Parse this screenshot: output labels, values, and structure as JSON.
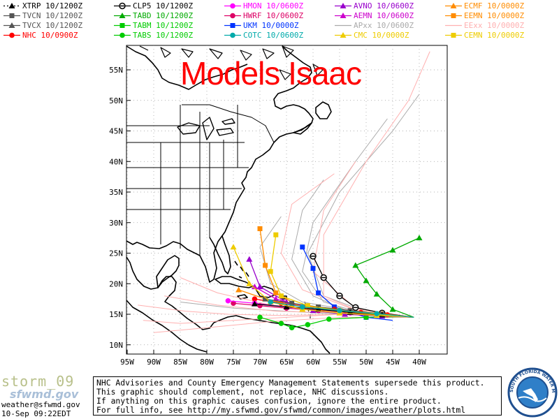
{
  "title": "Models Isaac",
  "legend": [
    {
      "label": "XTRP 10/1200Z",
      "color": "#000000",
      "marker": "triangle",
      "dashed": true
    },
    {
      "label": "CLP5 10/1200Z",
      "color": "#000000",
      "marker": "circle-bar"
    },
    {
      "label": "HMON 10/0600Z",
      "color": "#ff00ff",
      "marker": "circle"
    },
    {
      "label": "AVNO 10/0600Z",
      "color": "#9900cc",
      "marker": "triangle"
    },
    {
      "label": "ECMF 10/0000Z",
      "color": "#ff8c00",
      "marker": "triangle"
    },
    {
      "label": "TVCN 10/1200Z",
      "color": "#555555",
      "marker": "square"
    },
    {
      "label": "TABD 10/1200Z",
      "color": "#00aa00",
      "marker": "triangle"
    },
    {
      "label": "HWRF 10/0600Z",
      "color": "#dd0066",
      "marker": "circle"
    },
    {
      "label": "AEMN 10/0600Z",
      "color": "#cc00cc",
      "marker": "triangle"
    },
    {
      "label": "EEMN 10/0000Z",
      "color": "#ff8c00",
      "marker": "square"
    },
    {
      "label": "TVCX 10/1200Z",
      "color": "#555555",
      "marker": "triangle"
    },
    {
      "label": "TABM 10/1200Z",
      "color": "#00cc00",
      "marker": "square"
    },
    {
      "label": "UKM 10/0000Z",
      "color": "#0033ff",
      "marker": "square"
    },
    {
      "label": "APxx 10/0600Z",
      "color": "#aaaaaa",
      "marker": "none"
    },
    {
      "label": "EExx 10/0000Z",
      "color": "#ffb0b0",
      "marker": "none"
    },
    {
      "label": "NHC 10/0900Z",
      "color": "#ff0000",
      "marker": "circle"
    },
    {
      "label": "TABS 10/1200Z",
      "color": "#00cc00",
      "marker": "circle"
    },
    {
      "label": "COTC 10/0600Z",
      "color": "#00aaaa",
      "marker": "circle"
    },
    {
      "label": "CMC 10/0000Z",
      "color": "#eecc00",
      "marker": "triangle"
    },
    {
      "label": "CEMN 10/0000Z",
      "color": "#eecc00",
      "marker": "square"
    }
  ],
  "axes": {
    "lat_labels": [
      "55N",
      "50N",
      "45N",
      "40N",
      "35N",
      "30N",
      "25N",
      "20N",
      "15N",
      "10N"
    ],
    "lon_labels": [
      "95W",
      "90W",
      "85W",
      "80W",
      "75W",
      "70W",
      "65W",
      "60W",
      "55W",
      "50W",
      "45W",
      "40W"
    ]
  },
  "footer": {
    "storm": "storm_09",
    "brand": "sfwmd.gov",
    "email": "weather@sfwmd.gov",
    "timestamp": "10-Sep 09:22EDT",
    "disclaimer": [
      "NHC Advisories and County Emergency Management Statements supersede this product.",
      "This graphic should complement, not replace, NHC discussions.",
      "If anything on this graphic causes confusion, ignore the entire product.",
      "For full info, see  http://my.sfwmd.gov/sfwmd/common/images/weather/plots.html"
    ],
    "seal_text": "SOUTH FLORIDA WATER MANAGEMENT DISTRICT"
  },
  "tracks": [
    {
      "model": "CLP5",
      "color": "#000000",
      "marker": "circle-bar",
      "points": [
        [
          42,
          14.6
        ],
        [
          47,
          15.2
        ],
        [
          52,
          16.1
        ],
        [
          55,
          18.0
        ],
        [
          58,
          21.0
        ],
        [
          60,
          24.5
        ]
      ]
    },
    {
      "model": "TABD",
      "color": "#00aa00",
      "marker": "triangle",
      "points": [
        [
          41,
          14.5
        ],
        [
          45,
          15.8
        ],
        [
          48,
          18.3
        ],
        [
          50,
          20.5
        ],
        [
          52,
          23.0
        ],
        [
          45,
          25.5
        ],
        [
          40,
          27.5
        ]
      ]
    },
    {
      "model": "UKM",
      "color": "#0033ff",
      "marker": "square",
      "points": [
        [
          45,
          14.0
        ],
        [
          50,
          14.5
        ],
        [
          56,
          16.2
        ],
        [
          59,
          18.5
        ],
        [
          60,
          22.5
        ],
        [
          62,
          26.0
        ]
      ]
    },
    {
      "model": "TABS",
      "color": "#00cc00",
      "marker": "circle",
      "points": [
        [
          43,
          14.6
        ],
        [
          50,
          14.5
        ],
        [
          57,
          14.2
        ],
        [
          61,
          13.3
        ],
        [
          64,
          12.8
        ],
        [
          66,
          13.5
        ],
        [
          70,
          14.5
        ]
      ]
    },
    {
      "model": "NHC",
      "color": "#ff0000",
      "marker": "circle",
      "points": [
        [
          41,
          14.5
        ],
        [
          46,
          14.9
        ],
        [
          51,
          15.3
        ],
        [
          56,
          15.8
        ],
        [
          61,
          16.3
        ],
        [
          66,
          16.8
        ],
        [
          71,
          17.5
        ]
      ]
    },
    {
      "model": "HWRF",
      "color": "#dd0066",
      "marker": "circle",
      "points": [
        [
          41,
          14.5
        ],
        [
          47,
          15.0
        ],
        [
          53,
          15.4
        ],
        [
          59,
          15.6
        ],
        [
          65,
          16.0
        ],
        [
          70,
          16.4
        ],
        [
          75,
          16.8
        ]
      ]
    },
    {
      "model": "HMON",
      "color": "#ff00ff",
      "marker": "circle",
      "points": [
        [
          41,
          14.5
        ],
        [
          47,
          14.8
        ],
        [
          53,
          15.2
        ],
        [
          59,
          15.7
        ],
        [
          65,
          16.2
        ],
        [
          71,
          16.8
        ],
        [
          76,
          17.2
        ]
      ]
    },
    {
      "model": "AVNO",
      "color": "#9900cc",
      "marker": "triangle",
      "points": [
        [
          41,
          14.5
        ],
        [
          47,
          14.7
        ],
        [
          54,
          15.0
        ],
        [
          60,
          15.6
        ],
        [
          65,
          17.0
        ],
        [
          70,
          19.5
        ],
        [
          72,
          24.0
        ]
      ]
    },
    {
      "model": "AEMN",
      "color": "#cc00cc",
      "marker": "triangle",
      "points": [
        [
          41,
          14.5
        ],
        [
          48,
          15.0
        ],
        [
          55,
          15.5
        ],
        [
          62,
          16.3
        ],
        [
          67,
          17.5
        ],
        [
          71,
          19.5
        ]
      ]
    },
    {
      "model": "ECMF",
      "color": "#ff8c00",
      "marker": "triangle",
      "points": [
        [
          41,
          14.5
        ],
        [
          47,
          15.1
        ],
        [
          53,
          15.6
        ],
        [
          59,
          16.0
        ],
        [
          64,
          16.5
        ],
        [
          69,
          17.5
        ],
        [
          74,
          19.0
        ]
      ]
    },
    {
      "model": "EEMN",
      "color": "#ff8c00",
      "marker": "square",
      "points": [
        [
          41,
          14.5
        ],
        [
          48,
          14.9
        ],
        [
          55,
          15.4
        ],
        [
          62,
          16.0
        ],
        [
          67,
          18.5
        ],
        [
          69,
          23.0
        ],
        [
          70,
          29.0
        ]
      ]
    },
    {
      "model": "TVCN",
      "color": "#555555",
      "marker": "square",
      "points": [
        [
          41,
          14.5
        ],
        [
          47,
          15.0
        ],
        [
          53,
          15.6
        ],
        [
          59,
          16.2
        ],
        [
          64,
          16.8
        ],
        [
          69,
          17.5
        ]
      ]
    },
    {
      "model": "XTRP",
      "color": "#000000",
      "marker": "triangle",
      "points": [
        [
          41,
          14.5
        ],
        [
          47,
          14.9
        ],
        [
          53,
          15.3
        ],
        [
          59,
          15.8
        ],
        [
          65,
          16.2
        ],
        [
          71,
          16.7
        ]
      ]
    },
    {
      "model": "CMC",
      "color": "#eecc00",
      "marker": "triangle",
      "points": [
        [
          41,
          14.5
        ],
        [
          48,
          14.8
        ],
        [
          55,
          15.2
        ],
        [
          62,
          15.8
        ],
        [
          68,
          17.0
        ],
        [
          72,
          20.0
        ],
        [
          75,
          26.0
        ]
      ]
    },
    {
      "model": "CEMN",
      "color": "#eecc00",
      "marker": "square",
      "points": [
        [
          41,
          14.5
        ],
        [
          48,
          15.0
        ],
        [
          55,
          15.6
        ],
        [
          61,
          16.4
        ],
        [
          66,
          18.0
        ],
        [
          68,
          22.0
        ],
        [
          67,
          28.0
        ]
      ]
    },
    {
      "model": "COTC",
      "color": "#00aaaa",
      "marker": "circle",
      "points": [
        [
          41,
          14.5
        ],
        [
          48,
          15.1
        ],
        [
          55,
          15.6
        ],
        [
          62,
          16.2
        ],
        [
          68,
          17.0
        ]
      ]
    }
  ],
  "ensemble_tracks": [
    {
      "color": "#aaaaaa",
      "points": [
        [
          41,
          14.5
        ],
        [
          50,
          15.0
        ],
        [
          58,
          17.0
        ],
        [
          62,
          22.0
        ],
        [
          60,
          30.0
        ],
        [
          52,
          40.0
        ],
        [
          46,
          47.0
        ]
      ]
    },
    {
      "color": "#aaaaaa",
      "points": [
        [
          41,
          14.5
        ],
        [
          50,
          15.4
        ],
        [
          58,
          18.0
        ],
        [
          61,
          25.0
        ],
        [
          55,
          35.0
        ],
        [
          45,
          45.0
        ],
        [
          40,
          51.0
        ]
      ]
    },
    {
      "color": "#aaaaaa",
      "points": [
        [
          41,
          14.5
        ],
        [
          52,
          15.0
        ],
        [
          60,
          18.0
        ],
        [
          64,
          24.0
        ],
        [
          62,
          32.0
        ],
        [
          58,
          37.0
        ]
      ]
    },
    {
      "color": "#aaaaaa",
      "points": [
        [
          41,
          14.5
        ],
        [
          52,
          15.5
        ],
        [
          62,
          17.0
        ],
        [
          68,
          20.0
        ],
        [
          70,
          26.0
        ],
        [
          66,
          31.0
        ]
      ]
    },
    {
      "color": "#aaaaaa",
      "points": [
        [
          41,
          14.5
        ],
        [
          55,
          15.0
        ],
        [
          65,
          15.5
        ],
        [
          75,
          16.0
        ],
        [
          85,
          17.0
        ]
      ]
    },
    {
      "color": "#ffb0b0",
      "points": [
        [
          41,
          14.5
        ],
        [
          50,
          15.0
        ],
        [
          58,
          18.0
        ],
        [
          58,
          28.0
        ],
        [
          50,
          40.0
        ],
        [
          42,
          50.0
        ],
        [
          38,
          58.0
        ]
      ]
    },
    {
      "color": "#ffb0b0",
      "points": [
        [
          41,
          14.5
        ],
        [
          52,
          16.0
        ],
        [
          60,
          22.0
        ],
        [
          58,
          32.0
        ],
        [
          52,
          40.0
        ]
      ]
    },
    {
      "color": "#ffb0b0",
      "points": [
        [
          41,
          14.5
        ],
        [
          55,
          15.0
        ],
        [
          65,
          14.5
        ],
        [
          75,
          14.0
        ],
        [
          85,
          13.5
        ],
        [
          92,
          14.0
        ]
      ]
    },
    {
      "color": "#ffb0b0",
      "points": [
        [
          41,
          14.5
        ],
        [
          55,
          15.2
        ],
        [
          67,
          15.5
        ],
        [
          78,
          16.5
        ],
        [
          88,
          18.0
        ]
      ]
    },
    {
      "color": "#ffb0b0",
      "points": [
        [
          41,
          14.5
        ],
        [
          55,
          14.5
        ],
        [
          68,
          13.8
        ],
        [
          80,
          12.8
        ],
        [
          90,
          12.0
        ]
      ]
    },
    {
      "color": "#ffb0b0",
      "points": [
        [
          41,
          14.5
        ],
        [
          55,
          15.5
        ],
        [
          68,
          16.5
        ],
        [
          78,
          18.5
        ],
        [
          85,
          21.0
        ]
      ]
    },
    {
      "color": "#ffb0b0",
      "points": [
        [
          41,
          14.5
        ],
        [
          53,
          16.0
        ],
        [
          62,
          19.0
        ],
        [
          66,
          25.0
        ],
        [
          64,
          33.0
        ],
        [
          56,
          38.0
        ]
      ]
    },
    {
      "color": "#ffb0b0",
      "points": [
        [
          41,
          14.5
        ],
        [
          54,
          15.0
        ],
        [
          66,
          14.8
        ],
        [
          76,
          15.0
        ],
        [
          84,
          15.5
        ],
        [
          93,
          16.5
        ]
      ]
    }
  ]
}
